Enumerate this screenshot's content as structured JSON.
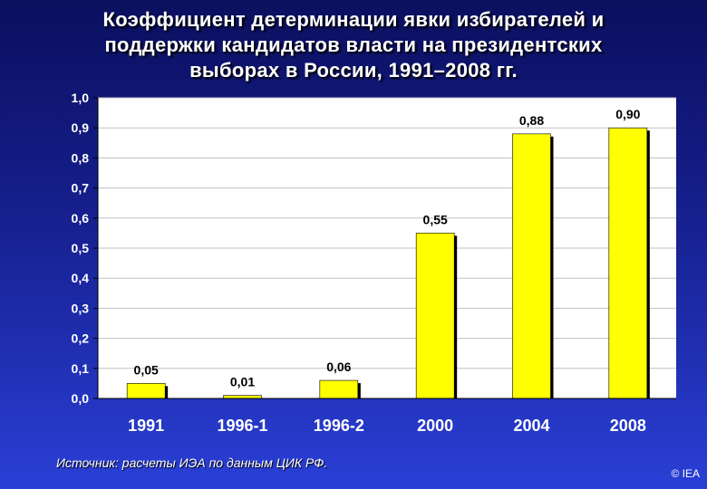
{
  "title": "Коэффициент детерминации явки избирателей и\nподдержки кандидатов власти на президентских\nвыборах  в России, 1991–2008 гг.",
  "source": "Источник: расчеты ИЭА по данным ЦИК РФ.",
  "copyright": "© IEA",
  "colors": {
    "bar": "#ffff00",
    "plot_bg": "#ffffff",
    "grid": "#c0c0c0",
    "text": "#ffffff"
  },
  "chart_data": {
    "type": "bar",
    "title": "Коэффициент детерминации явки избирателей и поддержки кандидатов власти на президентских выборах  в России, 1991–2008 гг.",
    "categories": [
      "1991",
      "1996-1",
      "1996-2",
      "2000",
      "2004",
      "2008"
    ],
    "values": [
      0.05,
      0.01,
      0.06,
      0.55,
      0.88,
      0.9
    ],
    "value_labels": [
      "0,05",
      "0,01",
      "0,06",
      "0,55",
      "0,88",
      "0,90"
    ],
    "yticks": [
      "0,0",
      "0,1",
      "0,2",
      "0,3",
      "0,4",
      "0,5",
      "0,6",
      "0,7",
      "0,8",
      "0,9",
      "1,0"
    ],
    "ylim": [
      0,
      1.0
    ],
    "xlabel": "",
    "ylabel": "",
    "grid": true,
    "legend": false
  }
}
